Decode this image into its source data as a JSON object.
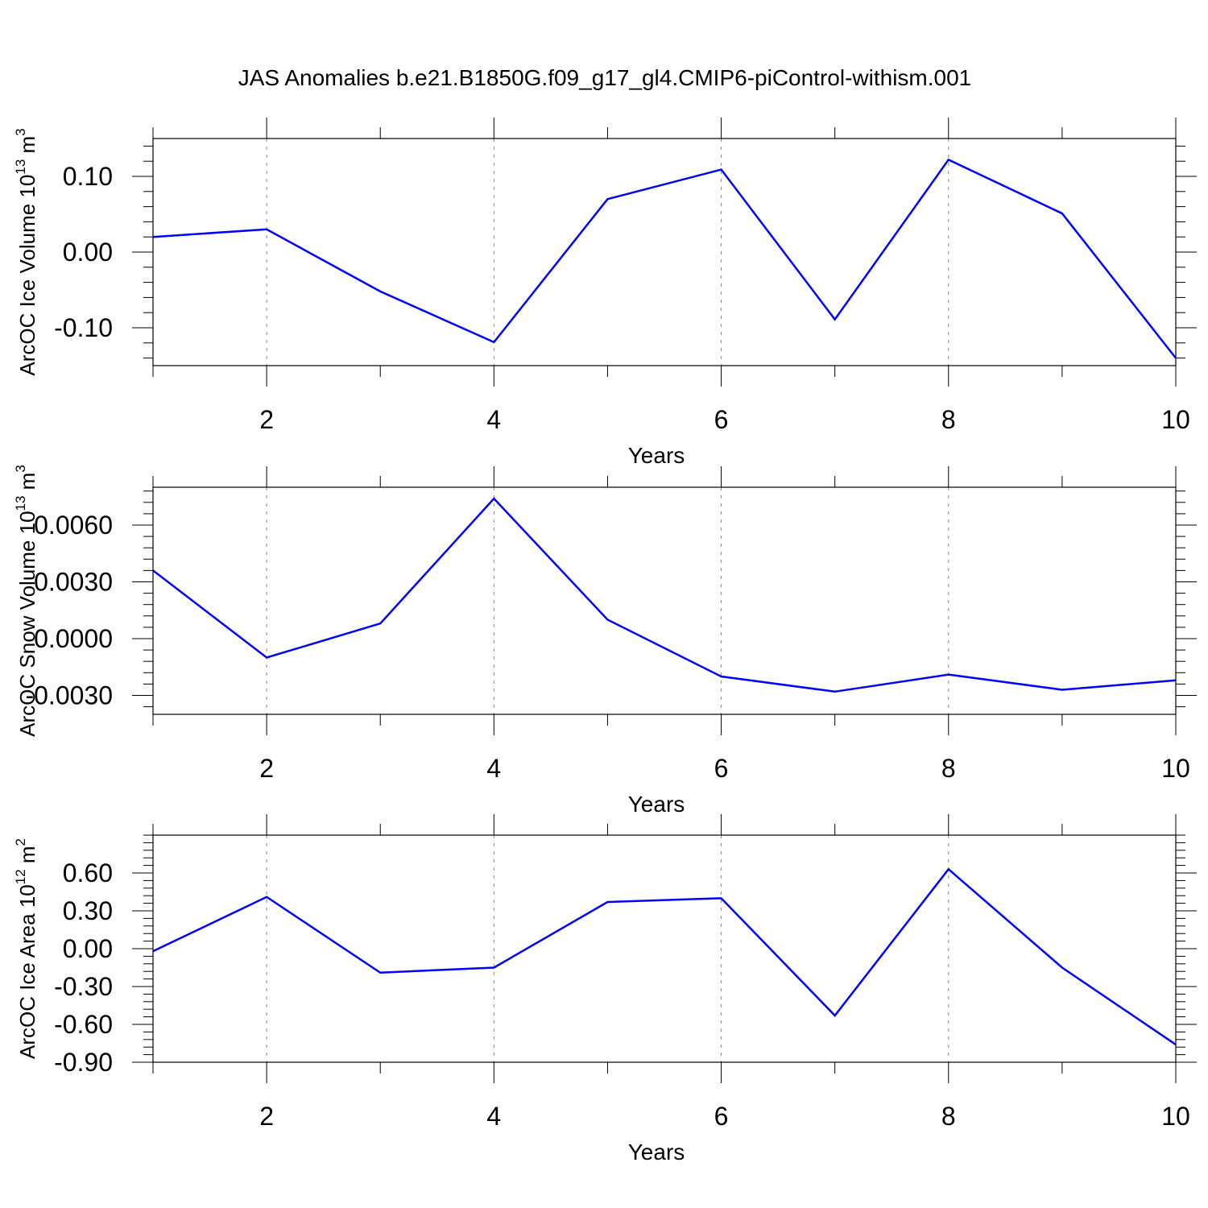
{
  "chart_data": {
    "type": "line",
    "title": "JAS Anomalies b.e21.B1850G.f09_g17_gl4.CMIP6-piControl-withism.001",
    "line_color": "#0000ff",
    "panels": [
      {
        "xlabel": "Years",
        "ylabel_text": "ArcOC Ice Volume 10",
        "ylabel_exp": "13",
        "ylabel_unit": " m",
        "ylabel_unit_exp": "3",
        "xlim": [
          1,
          10
        ],
        "ylim": [
          -0.15,
          0.15
        ],
        "xticks": [
          2,
          4,
          6,
          8,
          10
        ],
        "xtick_labels": [
          "2",
          "4",
          "6",
          "8",
          "10"
        ],
        "yticks": [
          -0.1,
          0.0,
          0.1
        ],
        "ytick_labels": [
          "-0.10",
          "0.00",
          "0.10"
        ],
        "grid_x": true,
        "x": [
          1,
          2,
          3,
          4,
          5,
          6,
          7,
          8,
          9,
          10
        ],
        "y": [
          0.02,
          0.03,
          -0.052,
          -0.119,
          0.07,
          0.109,
          -0.089,
          0.122,
          0.051,
          -0.14
        ]
      },
      {
        "xlabel": "Years",
        "ylabel_text": "ArcOC Snow Volume 10",
        "ylabel_exp": "13",
        "ylabel_unit": " m",
        "ylabel_unit_exp": "3",
        "xlim": [
          1,
          10
        ],
        "ylim": [
          -0.004,
          0.008
        ],
        "xticks": [
          2,
          4,
          6,
          8,
          10
        ],
        "xtick_labels": [
          "2",
          "4",
          "6",
          "8",
          "10"
        ],
        "yticks": [
          -0.003,
          0.0,
          0.003,
          0.006
        ],
        "ytick_labels": [
          "-0.0030",
          "0.0000",
          "0.0030",
          "0.0060"
        ],
        "grid_x": true,
        "x": [
          1,
          2,
          3,
          4,
          5,
          6,
          7,
          8,
          9,
          10
        ],
        "y": [
          0.0036,
          -0.001,
          0.0008,
          0.0074,
          0.001,
          -0.002,
          -0.0028,
          -0.0019,
          -0.0027,
          -0.0022
        ]
      },
      {
        "xlabel": "Years",
        "ylabel_text": "ArcOC Ice Area 10",
        "ylabel_exp": "12",
        "ylabel_unit": " m",
        "ylabel_unit_exp": "2",
        "xlim": [
          1,
          10
        ],
        "ylim": [
          -0.9,
          0.9
        ],
        "xticks": [
          2,
          4,
          6,
          8,
          10
        ],
        "xtick_labels": [
          "2",
          "4",
          "6",
          "8",
          "10"
        ],
        "yticks": [
          -0.9,
          -0.6,
          -0.3,
          0.0,
          0.3,
          0.6
        ],
        "ytick_labels": [
          "-0.90",
          "-0.60",
          "-0.30",
          "0.00",
          "0.30",
          "0.60"
        ],
        "grid_x": true,
        "x": [
          1,
          2,
          3,
          4,
          5,
          6,
          7,
          8,
          9,
          10
        ],
        "y": [
          -0.02,
          0.41,
          -0.19,
          -0.15,
          0.37,
          0.4,
          -0.53,
          0.63,
          -0.15,
          -0.76
        ]
      }
    ]
  }
}
